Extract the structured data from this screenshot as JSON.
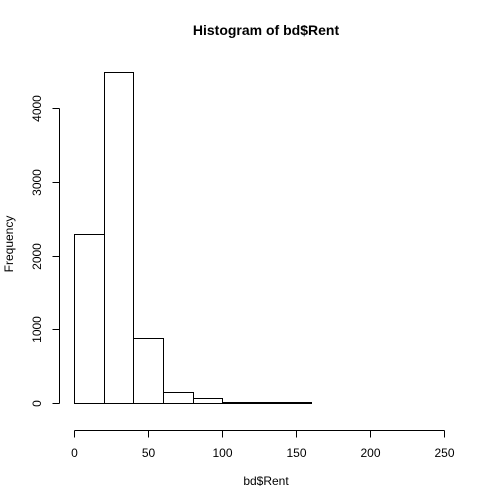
{
  "chart_data": {
    "type": "bar",
    "title": "Histogram of bd$Rent",
    "xlabel": "bd$Rent",
    "ylabel": "Frequency",
    "bins": [
      {
        "start": 0,
        "end": 20,
        "count": 2290
      },
      {
        "start": 20,
        "end": 40,
        "count": 4490
      },
      {
        "start": 40,
        "end": 60,
        "count": 880
      },
      {
        "start": 60,
        "end": 80,
        "count": 145
      },
      {
        "start": 80,
        "end": 100,
        "count": 70
      },
      {
        "start": 100,
        "end": 120,
        "count": 12
      },
      {
        "start": 120,
        "end": 140,
        "count": 8
      },
      {
        "start": 140,
        "end": 160,
        "count": 5
      },
      {
        "start": 160,
        "end": 180,
        "count": 3
      },
      {
        "start": 180,
        "end": 200,
        "count": 3
      },
      {
        "start": 200,
        "end": 220,
        "count": 2
      },
      {
        "start": 220,
        "end": 240,
        "count": 1
      },
      {
        "start": 240,
        "end": 260,
        "count": 2
      }
    ],
    "xlim": [
      0,
      260
    ],
    "ylim": [
      0,
      4490
    ],
    "x_ticks": [
      0,
      50,
      100,
      150,
      200,
      250
    ],
    "y_ticks": [
      0,
      1000,
      2000,
      3000,
      4000
    ],
    "x_tick_labels": [
      "0",
      "50",
      "100",
      "150",
      "200",
      "250"
    ],
    "y_tick_labels": [
      "0",
      "1000",
      "2000",
      "3000",
      "4000"
    ],
    "grid": false,
    "legend": "none",
    "colors": {
      "bar_fill": "#ffffff",
      "bar_stroke": "#000000",
      "text": "#000000"
    }
  }
}
